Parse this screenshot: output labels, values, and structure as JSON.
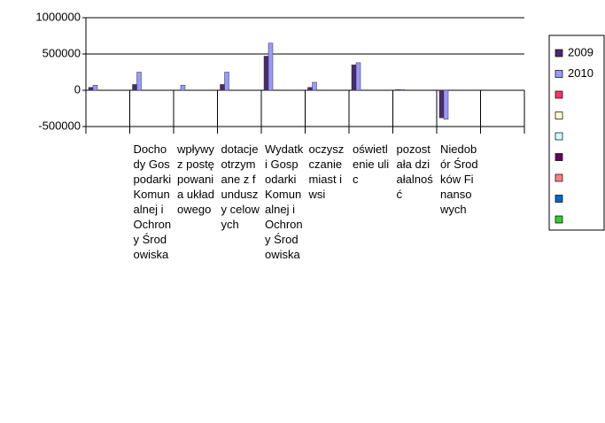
{
  "chart_data": {
    "type": "bar",
    "categories": [
      null,
      "Dochody Gospodarki Komunalnej i Ochrony Środowiska",
      "wpływy z postępowania układowego",
      "dotacje otrzymane z funduszy celowych",
      "Wydatki Gospodarki Komunalnej i Ochrony Środowiska",
      "oczyszczanie miast i wsi",
      "oświetlenie ulic",
      "pozostała działalność",
      "Niedobór Środków Finansowych",
      null
    ],
    "series": [
      {
        "name": "2009",
        "color": "#4b2a6e",
        "values": [
          40000,
          80000,
          null,
          80000,
          470000,
          40000,
          350000,
          10000,
          -380000,
          null
        ]
      },
      {
        "name": "2010",
        "color": "#9999ff",
        "values": [
          70000,
          250000,
          70000,
          250000,
          650000,
          110000,
          380000,
          10000,
          -400000,
          null
        ]
      },
      {
        "color": "#ff3366",
        "values": [
          null,
          null,
          null,
          null,
          null,
          null,
          null,
          null,
          null,
          null
        ]
      },
      {
        "color": "#ffffcc",
        "values": [
          null,
          null,
          null,
          null,
          null,
          null,
          null,
          null,
          null,
          null
        ]
      },
      {
        "color": "#ccffff",
        "values": [
          null,
          null,
          null,
          null,
          null,
          null,
          null,
          null,
          null,
          null
        ]
      },
      {
        "color": "#660066",
        "values": [
          null,
          null,
          null,
          null,
          null,
          null,
          null,
          null,
          null,
          null
        ]
      },
      {
        "color": "#ff8080",
        "values": [
          null,
          null,
          null,
          null,
          null,
          null,
          null,
          null,
          null,
          null
        ]
      },
      {
        "color": "#0066cc",
        "values": [
          null,
          null,
          null,
          null,
          null,
          null,
          null,
          null,
          null,
          null
        ]
      },
      {
        "color": "#33cc33",
        "values": [
          null,
          null,
          null,
          null,
          null,
          null,
          null,
          null,
          null,
          null
        ]
      }
    ],
    "ylim": [
      -500000,
      1000000
    ],
    "yticks": [
      -500000,
      0,
      500000,
      1000000
    ],
    "grid": true
  }
}
